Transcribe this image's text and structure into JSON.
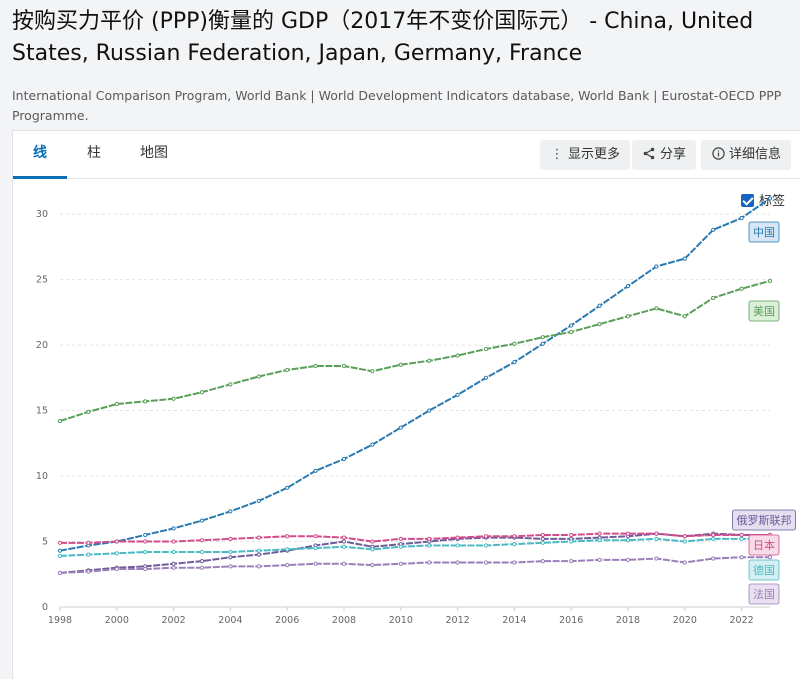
{
  "header": {
    "title": "按购买力平价 (PPP)衡量的 GDP（2017年不变价国际元） - China, United States, Russian Federation, Japan, Germany, France",
    "source": "International Comparison Program, World Bank | World Development Indicators database, World Bank | Eurostat-OECD PPP Programme."
  },
  "tabs": [
    {
      "label": "线",
      "active": true
    },
    {
      "label": "柱",
      "active": false
    },
    {
      "label": "地图",
      "active": false
    }
  ],
  "toolbar": {
    "more_label": "显示更多",
    "more_icon": "more-vertical-icon",
    "share_label": "分享",
    "share_icon": "share-icon",
    "details_label": "详细信息",
    "details_icon": "info-icon"
  },
  "labels_toggle": {
    "label": "标签",
    "checked": true
  },
  "chart_data": {
    "type": "line",
    "title": "",
    "xlabel": "",
    "ylabel": "",
    "x": [
      1998,
      1999,
      2000,
      2001,
      2002,
      2003,
      2004,
      2005,
      2006,
      2007,
      2008,
      2009,
      2010,
      2011,
      2012,
      2013,
      2014,
      2015,
      2016,
      2017,
      2018,
      2019,
      2020,
      2021,
      2022,
      2023
    ],
    "xticks": [
      1998,
      2000,
      2002,
      2004,
      2006,
      2008,
      2010,
      2012,
      2014,
      2016,
      2018,
      2020,
      2022
    ],
    "ylim": [
      0,
      31
    ],
    "yticks": [
      0,
      5,
      10,
      15,
      20,
      25,
      30
    ],
    "grid": true,
    "series": [
      {
        "name": "中国",
        "color": "#2a7ab0",
        "label_bg": "#d6e6f4",
        "values": [
          4.3,
          4.7,
          5.0,
          5.5,
          6.0,
          6.6,
          7.3,
          8.1,
          9.1,
          10.4,
          11.3,
          12.4,
          13.7,
          15.0,
          16.2,
          17.5,
          18.7,
          20.1,
          21.5,
          23.0,
          24.5,
          26.0,
          26.6,
          28.8,
          29.7,
          31.2
        ]
      },
      {
        "name": "美国",
        "color": "#5a9e57",
        "label_bg": "#dcefd9",
        "values": [
          14.2,
          14.9,
          15.5,
          15.7,
          15.9,
          16.4,
          17.0,
          17.6,
          18.1,
          18.4,
          18.4,
          18.0,
          18.5,
          18.8,
          19.2,
          19.7,
          20.1,
          20.6,
          21.0,
          21.6,
          22.2,
          22.8,
          22.2,
          23.6,
          24.3,
          24.9
        ]
      },
      {
        "name": "俄罗斯联邦",
        "color": "#6f5a9a",
        "label_bg": "#e4dff0",
        "values": [
          2.6,
          2.8,
          3.0,
          3.1,
          3.3,
          3.5,
          3.8,
          4.0,
          4.3,
          4.7,
          5.0,
          4.6,
          4.8,
          5.0,
          5.2,
          5.3,
          5.3,
          5.2,
          5.2,
          5.3,
          5.4,
          5.6,
          5.4,
          5.6,
          5.5,
          5.5
        ]
      },
      {
        "name": "日本",
        "color": "#d34c8a",
        "label_bg": "#f7dbe8",
        "values": [
          4.9,
          4.9,
          5.0,
          5.0,
          5.0,
          5.1,
          5.2,
          5.3,
          5.4,
          5.4,
          5.3,
          5.0,
          5.2,
          5.2,
          5.3,
          5.4,
          5.4,
          5.5,
          5.5,
          5.6,
          5.6,
          5.6,
          5.4,
          5.5,
          5.5,
          5.5
        ]
      },
      {
        "name": "德国",
        "color": "#4ab9c2",
        "label_bg": "#d4eff1",
        "values": [
          3.9,
          4.0,
          4.1,
          4.2,
          4.2,
          4.2,
          4.2,
          4.3,
          4.4,
          4.5,
          4.6,
          4.4,
          4.6,
          4.7,
          4.7,
          4.7,
          4.8,
          4.9,
          5.0,
          5.1,
          5.1,
          5.2,
          5.0,
          5.2,
          5.2,
          5.2
        ]
      },
      {
        "name": "法国",
        "color": "#9a7fb8",
        "label_bg": "#e9e1f1",
        "values": [
          2.6,
          2.7,
          2.9,
          2.9,
          3.0,
          3.0,
          3.1,
          3.1,
          3.2,
          3.3,
          3.3,
          3.2,
          3.3,
          3.4,
          3.4,
          3.4,
          3.4,
          3.5,
          3.5,
          3.6,
          3.6,
          3.7,
          3.4,
          3.7,
          3.8,
          3.8
        ]
      }
    ]
  }
}
